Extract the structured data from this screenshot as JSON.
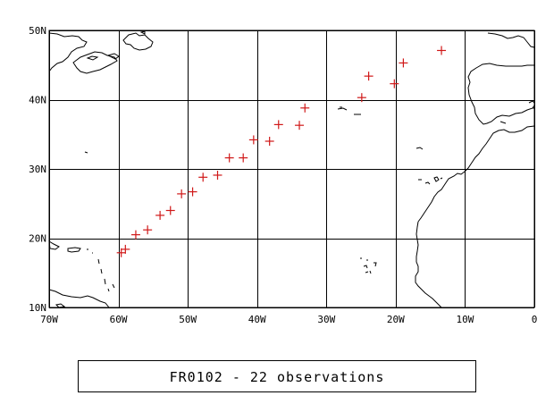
{
  "caption": "FR0102 - 22 observations",
  "chart_data": {
    "type": "scatter",
    "marker": "plus",
    "marker_color": "#d01818",
    "xlim": [
      -70,
      0
    ],
    "ylim": [
      10,
      50
    ],
    "grid": true,
    "x_ticks": [
      {
        "value": -70,
        "label": "70W"
      },
      {
        "value": -60,
        "label": "60W"
      },
      {
        "value": -50,
        "label": "50W"
      },
      {
        "value": -40,
        "label": "40W"
      },
      {
        "value": -30,
        "label": "30W"
      },
      {
        "value": -20,
        "label": "20W"
      },
      {
        "value": -10,
        "label": "10W"
      },
      {
        "value": 0,
        "label": "0"
      }
    ],
    "y_ticks": [
      {
        "value": 10,
        "label": "10N"
      },
      {
        "value": 20,
        "label": "20N"
      },
      {
        "value": 30,
        "label": "30N"
      },
      {
        "value": 40,
        "label": "40N"
      },
      {
        "value": 50,
        "label": "50N"
      }
    ],
    "points": [
      {
        "lon": -59.6,
        "lat": 17.9
      },
      {
        "lon": -59.0,
        "lat": 18.4
      },
      {
        "lon": -57.5,
        "lat": 20.5
      },
      {
        "lon": -55.8,
        "lat": 21.2
      },
      {
        "lon": -54.0,
        "lat": 23.3
      },
      {
        "lon": -52.5,
        "lat": 24.0
      },
      {
        "lon": -50.9,
        "lat": 26.4
      },
      {
        "lon": -49.3,
        "lat": 26.7
      },
      {
        "lon": -47.8,
        "lat": 28.8
      },
      {
        "lon": -45.7,
        "lat": 29.1
      },
      {
        "lon": -44.0,
        "lat": 31.6
      },
      {
        "lon": -42.0,
        "lat": 31.6
      },
      {
        "lon": -40.5,
        "lat": 34.2
      },
      {
        "lon": -38.2,
        "lat": 34.0
      },
      {
        "lon": -36.9,
        "lat": 36.4
      },
      {
        "lon": -33.9,
        "lat": 36.3
      },
      {
        "lon": -33.1,
        "lat": 38.8
      },
      {
        "lon": -24.9,
        "lat": 40.3
      },
      {
        "lon": -23.9,
        "lat": 43.4
      },
      {
        "lon": -20.2,
        "lat": 42.3
      },
      {
        "lon": -18.9,
        "lat": 45.3
      },
      {
        "lon": -13.4,
        "lat": 47.1
      }
    ]
  }
}
